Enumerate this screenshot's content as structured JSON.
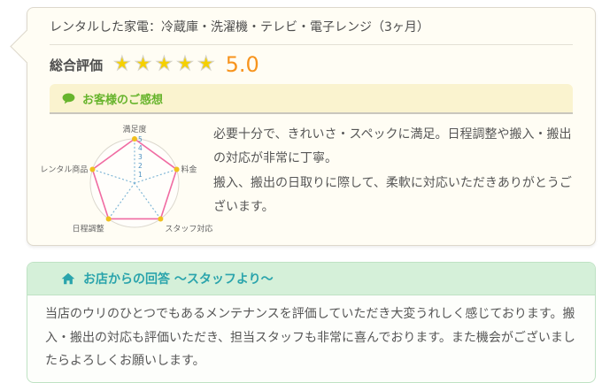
{
  "colors": {
    "card_bg": "#fffdf4",
    "card_border": "#ddd8cc",
    "star_gold": "#f5d000",
    "score_orange": "#f7941d",
    "feedback_green": "#67b42c",
    "feedback_bg": "#faf3cf",
    "reply_teal": "#2aa4ac",
    "reply_head_bg": "#d5f0d9",
    "reply_border": "#bfe2c4",
    "radar_line_pink": "#f06ba2",
    "radar_axis_blue": "#7fb6d6",
    "radar_dot_gold": "#f0c01d",
    "text": "#555555"
  },
  "review_card": {
    "title": "レンタルした家電：冷蔵庫・洗濯機・テレビ・電子レンジ（3ヶ月）",
    "overall_rating": {
      "label": "総合評価",
      "stars": "★★★★★",
      "value": "5.0"
    },
    "feedback": {
      "icon": "speech-bubble-icon",
      "heading": "お客様のご感想",
      "comment_lines": [
        "必要十分で、きれいさ・スペックに満足。日程調整や搬入・搬出の対応が非常に丁寧。",
        "搬入、搬出の日取りに際して、柔軟に対応いただきありがとうございます。"
      ]
    },
    "chart_data": {
      "type": "radar",
      "categories": [
        "満足度",
        "料金",
        "スタッフ対応",
        "日程調整",
        "レンタル商品"
      ],
      "values": [
        5,
        5,
        5,
        5,
        5
      ],
      "max": 5,
      "scale_ticks": [
        1,
        2,
        3,
        4,
        5
      ],
      "grid": "circle-outline",
      "legend": "none"
    }
  },
  "reply_card": {
    "icon": "home-icon",
    "heading": "お店からの回答 〜スタッフより〜",
    "body": "当店のウリのひとつでもあるメンテナンスを評価していただき大変うれしく感じております。搬入・搬出の対応も評価いただき、担当スタッフも非常に喜んでおります。また機会がございましたらよろしくお願いします。"
  }
}
